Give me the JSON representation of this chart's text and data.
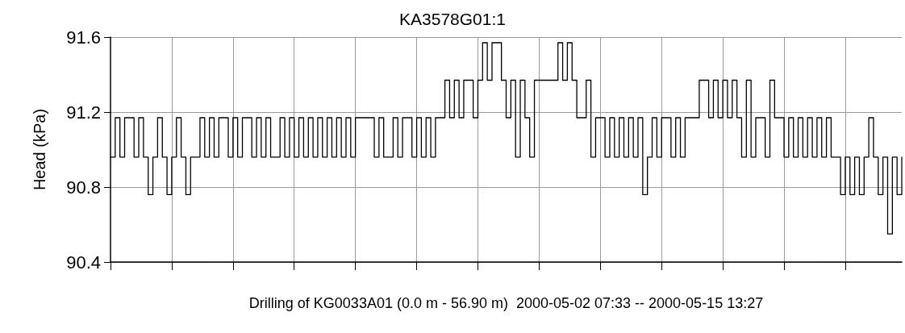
{
  "chart_data": {
    "type": "step",
    "title": "KA3578G01:1",
    "xlabel": "Drilling of KG0033A01 (0.0 m - 56.90 m)  2000-05-02 07:33 -- 2000-05-15 13:27",
    "ylabel": "Head (kPa)",
    "categories": [
      null,
      null,
      null,
      null,
      null,
      null,
      null,
      null,
      null,
      null,
      null,
      null,
      null,
      null,
      null,
      null,
      null,
      null,
      null,
      null,
      null,
      null,
      null,
      null,
      null,
      null,
      null,
      null,
      null,
      null,
      null,
      null,
      null,
      null,
      null,
      null,
      null,
      null,
      null,
      null,
      null,
      null,
      null,
      null,
      null,
      null,
      null,
      null,
      null,
      null,
      null,
      null,
      null,
      null,
      null,
      null,
      null,
      null,
      null,
      null,
      null,
      null,
      null,
      null,
      null,
      null,
      null,
      null,
      null,
      null,
      null,
      null,
      null,
      null,
      null,
      null,
      null,
      null,
      null,
      null,
      null,
      null,
      null,
      null,
      null,
      null,
      null,
      null,
      null,
      null,
      null,
      null,
      null,
      null,
      null,
      null,
      null,
      null,
      null,
      null,
      null,
      null,
      null,
      null,
      null,
      null,
      null,
      null,
      null,
      null,
      null,
      null,
      null,
      null,
      null,
      null,
      null,
      null,
      null,
      null,
      null,
      null,
      null,
      null,
      null,
      null,
      null,
      null,
      null,
      null,
      null,
      null,
      null,
      null,
      null,
      null,
      null,
      null,
      null,
      null,
      null,
      null,
      null,
      null,
      null,
      null,
      null,
      null,
      null,
      null,
      null,
      null,
      null,
      null,
      null,
      null,
      null,
      null,
      null,
      null,
      null,
      null,
      null,
      null,
      null,
      null,
      null,
      null,
      null
    ],
    "series": [
      {
        "color": "#000000",
        "values": [
          90.96,
          91.17,
          90.96,
          91.17,
          91.17,
          90.96,
          91.17,
          90.96,
          90.76,
          90.96,
          91.17,
          90.96,
          90.76,
          90.96,
          91.17,
          90.96,
          90.76,
          90.96,
          90.96,
          91.17,
          90.96,
          91.17,
          90.96,
          91.17,
          91.17,
          90.96,
          91.17,
          90.96,
          91.17,
          91.17,
          90.96,
          91.17,
          90.96,
          91.17,
          90.96,
          90.96,
          91.17,
          90.96,
          91.17,
          90.96,
          91.17,
          90.96,
          91.17,
          90.96,
          91.17,
          90.96,
          91.17,
          90.96,
          91.17,
          90.96,
          91.17,
          90.96,
          91.17,
          91.17,
          91.17,
          91.17,
          90.96,
          91.17,
          90.96,
          90.96,
          91.17,
          90.96,
          91.17,
          91.17,
          90.96,
          91.17,
          90.96,
          91.17,
          90.96,
          91.17,
          91.17,
          91.37,
          91.17,
          91.37,
          91.17,
          91.37,
          91.37,
          91.17,
          91.37,
          91.57,
          91.37,
          91.57,
          91.57,
          91.37,
          91.17,
          91.37,
          90.96,
          91.37,
          91.17,
          90.96,
          91.37,
          91.37,
          91.37,
          91.37,
          91.37,
          91.57,
          91.37,
          91.57,
          91.37,
          91.17,
          91.17,
          91.37,
          90.96,
          91.17,
          91.17,
          90.96,
          91.17,
          90.96,
          91.17,
          90.96,
          91.17,
          90.96,
          91.17,
          90.76,
          90.96,
          91.17,
          90.96,
          91.17,
          91.17,
          90.96,
          91.17,
          90.96,
          91.17,
          91.17,
          91.17,
          91.37,
          91.37,
          91.17,
          91.37,
          91.17,
          91.37,
          91.17,
          91.37,
          91.17,
          90.96,
          91.37,
          90.96,
          91.17,
          91.17,
          90.96,
          91.37,
          91.17,
          91.17,
          90.96,
          91.17,
          90.96,
          91.17,
          90.96,
          91.17,
          90.96,
          91.17,
          90.96,
          91.17,
          90.96,
          90.96,
          90.76,
          90.96,
          90.76,
          90.96,
          90.76,
          90.96,
          91.17,
          90.96,
          90.76,
          90.96,
          90.55,
          90.96,
          90.76,
          90.96
        ]
      }
    ],
    "ylim": [
      90.4,
      91.6
    ],
    "yticks": [
      90.4,
      90.8,
      91.2,
      91.6
    ],
    "grid": true
  }
}
